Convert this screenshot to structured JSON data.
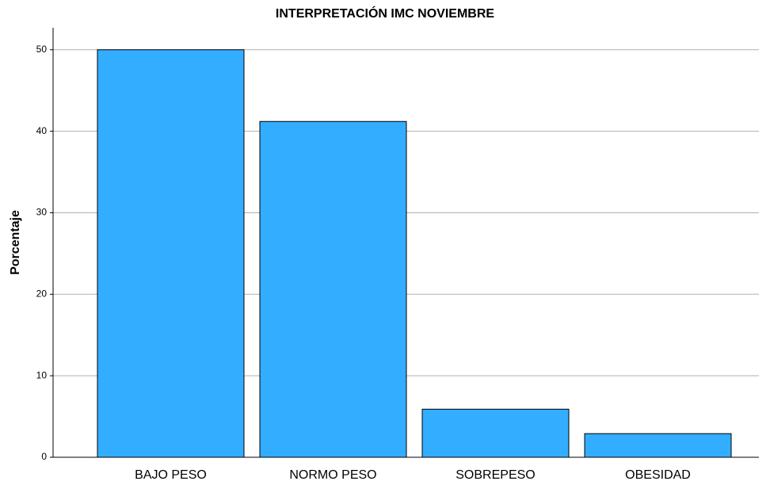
{
  "chart_data": {
    "type": "bar",
    "title": "INTERPRETACIÓN IMC NOVIEMBRE",
    "y_label": "Porcentaje",
    "categories": [
      "BAJO PESO",
      "NORMO PESO",
      "SOBREPESO",
      "OBESIDAD"
    ],
    "values": [
      50,
      41.2,
      5.9,
      2.9
    ],
    "color": "#33adff",
    "ylim": [
      0,
      52.7
    ],
    "yticks": [
      0,
      10,
      20,
      30,
      40,
      50
    ],
    "grid": true
  }
}
